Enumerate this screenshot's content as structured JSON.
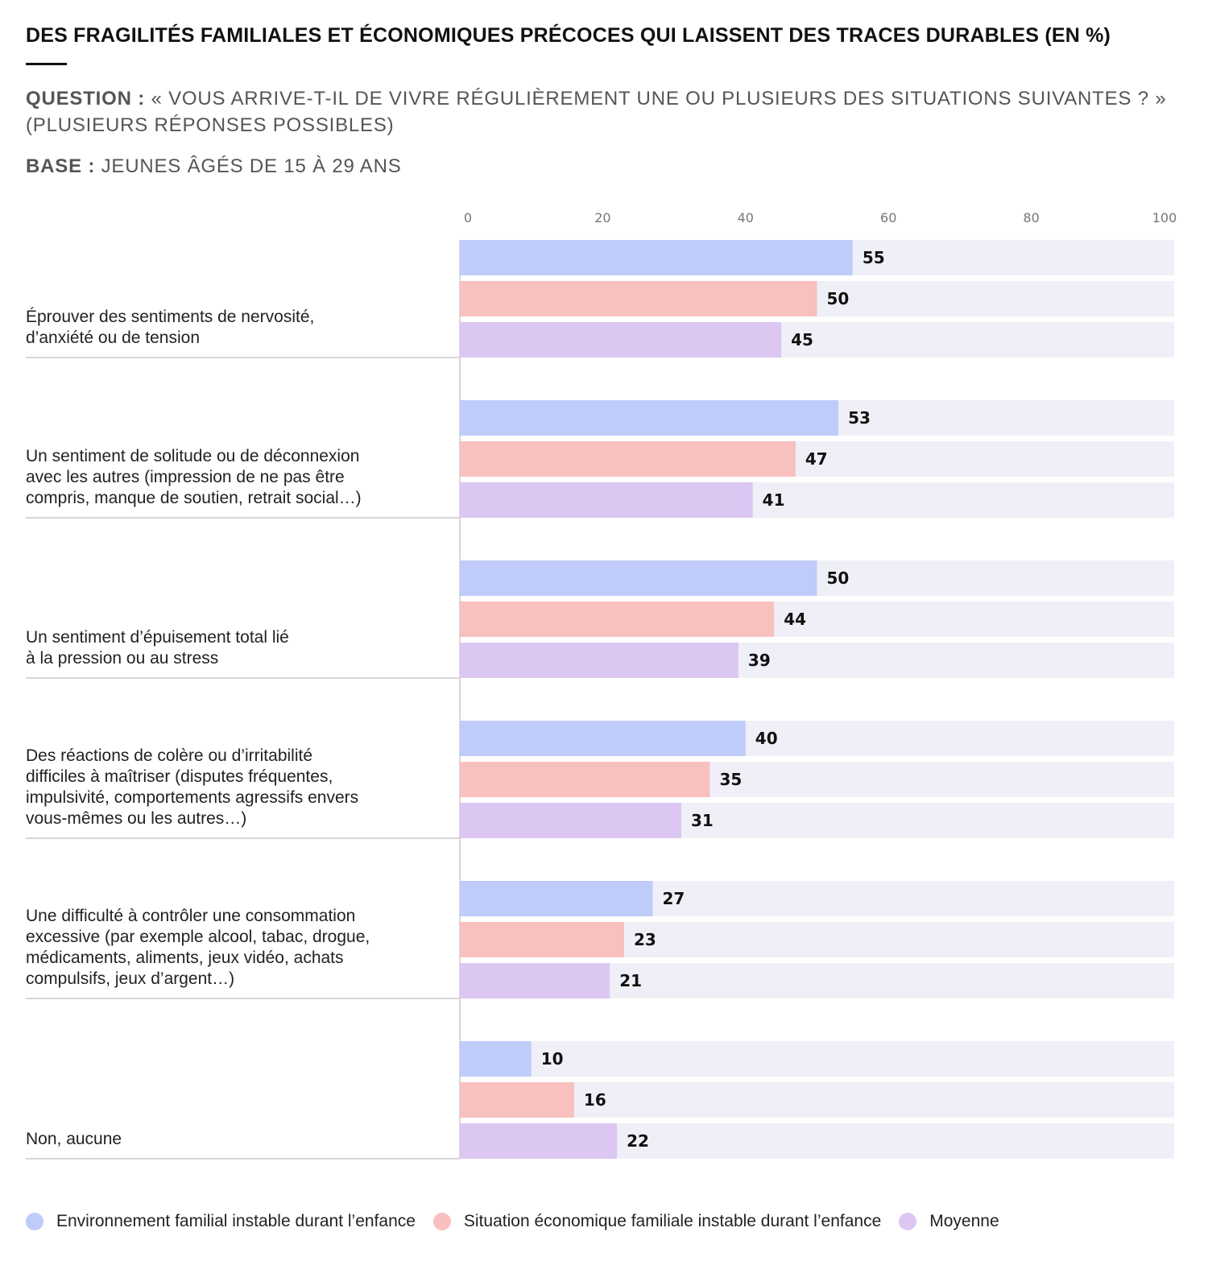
{
  "header": {
    "title": "DES FRAGILITÉS FAMILIALES ET ÉCONOMIQUES PRÉCOCES QUI LAISSENT DES TRACES DURABLES (EN %)",
    "question_label": "QUESTION :",
    "question_text": "« VOUS ARRIVE-T-IL DE VIVRE RÉGULIÈREMENT UNE OU PLUSIEURS DES SITUATIONS SUIVANTES ? » (PLUSIEURS RÉPONSES POSSIBLES)",
    "base_label": "BASE :",
    "base_text": "JEUNES ÂGÉS DE 15 À 29 ANS"
  },
  "chart_data": {
    "type": "bar",
    "orientation": "horizontal",
    "title": "DES FRAGILITÉS FAMILIALES ET ÉCONOMIQUES PRÉCOCES QUI LAISSENT DES TRACES DURABLES (EN %)",
    "xlabel": "",
    "ylabel": "",
    "xlim": [
      0,
      100
    ],
    "ticks": [
      0,
      20,
      40,
      60,
      80,
      100
    ],
    "tick_position": "top",
    "grid": false,
    "legend_position": "bottom",
    "categories": [
      [
        "Éprouver des sentiments de nervosité,",
        "d’anxiété ou de tension"
      ],
      [
        "Un sentiment de solitude ou de déconnexion",
        "avec les autres (impression de ne pas être",
        "compris, manque de soutien, retrait social…)"
      ],
      [
        "Un sentiment d’épuisement total lié",
        "à la pression ou au stress"
      ],
      [
        "Des réactions de colère ou d’irritabilité",
        "difficiles à maîtriser (disputes fréquentes,",
        "impulsivité, comportements agressifs envers",
        "vous-mêmes ou les autres…)"
      ],
      [
        "Une difficulté à contrôler une consommation",
        "excessive (par exemple alcool, tabac, drogue,",
        "médicaments, aliments, jeux vidéo, achats",
        "compulsifs, jeux d’argent…)"
      ],
      [
        "Non, aucune"
      ]
    ],
    "series": [
      {
        "name": "Environnement familial instable durant l’enfance",
        "color": "#bfccfa",
        "values": [
          55,
          53,
          50,
          40,
          27,
          10
        ]
      },
      {
        "name": "Situation économique familiale instable durant l’enfance",
        "color": "#f9c0c0",
        "values": [
          50,
          47,
          44,
          35,
          23,
          16
        ]
      },
      {
        "name": "Moyenne",
        "color": "#dcc7f3",
        "values": [
          45,
          41,
          39,
          31,
          21,
          22
        ]
      }
    ],
    "track_color": "#eff0f7"
  }
}
